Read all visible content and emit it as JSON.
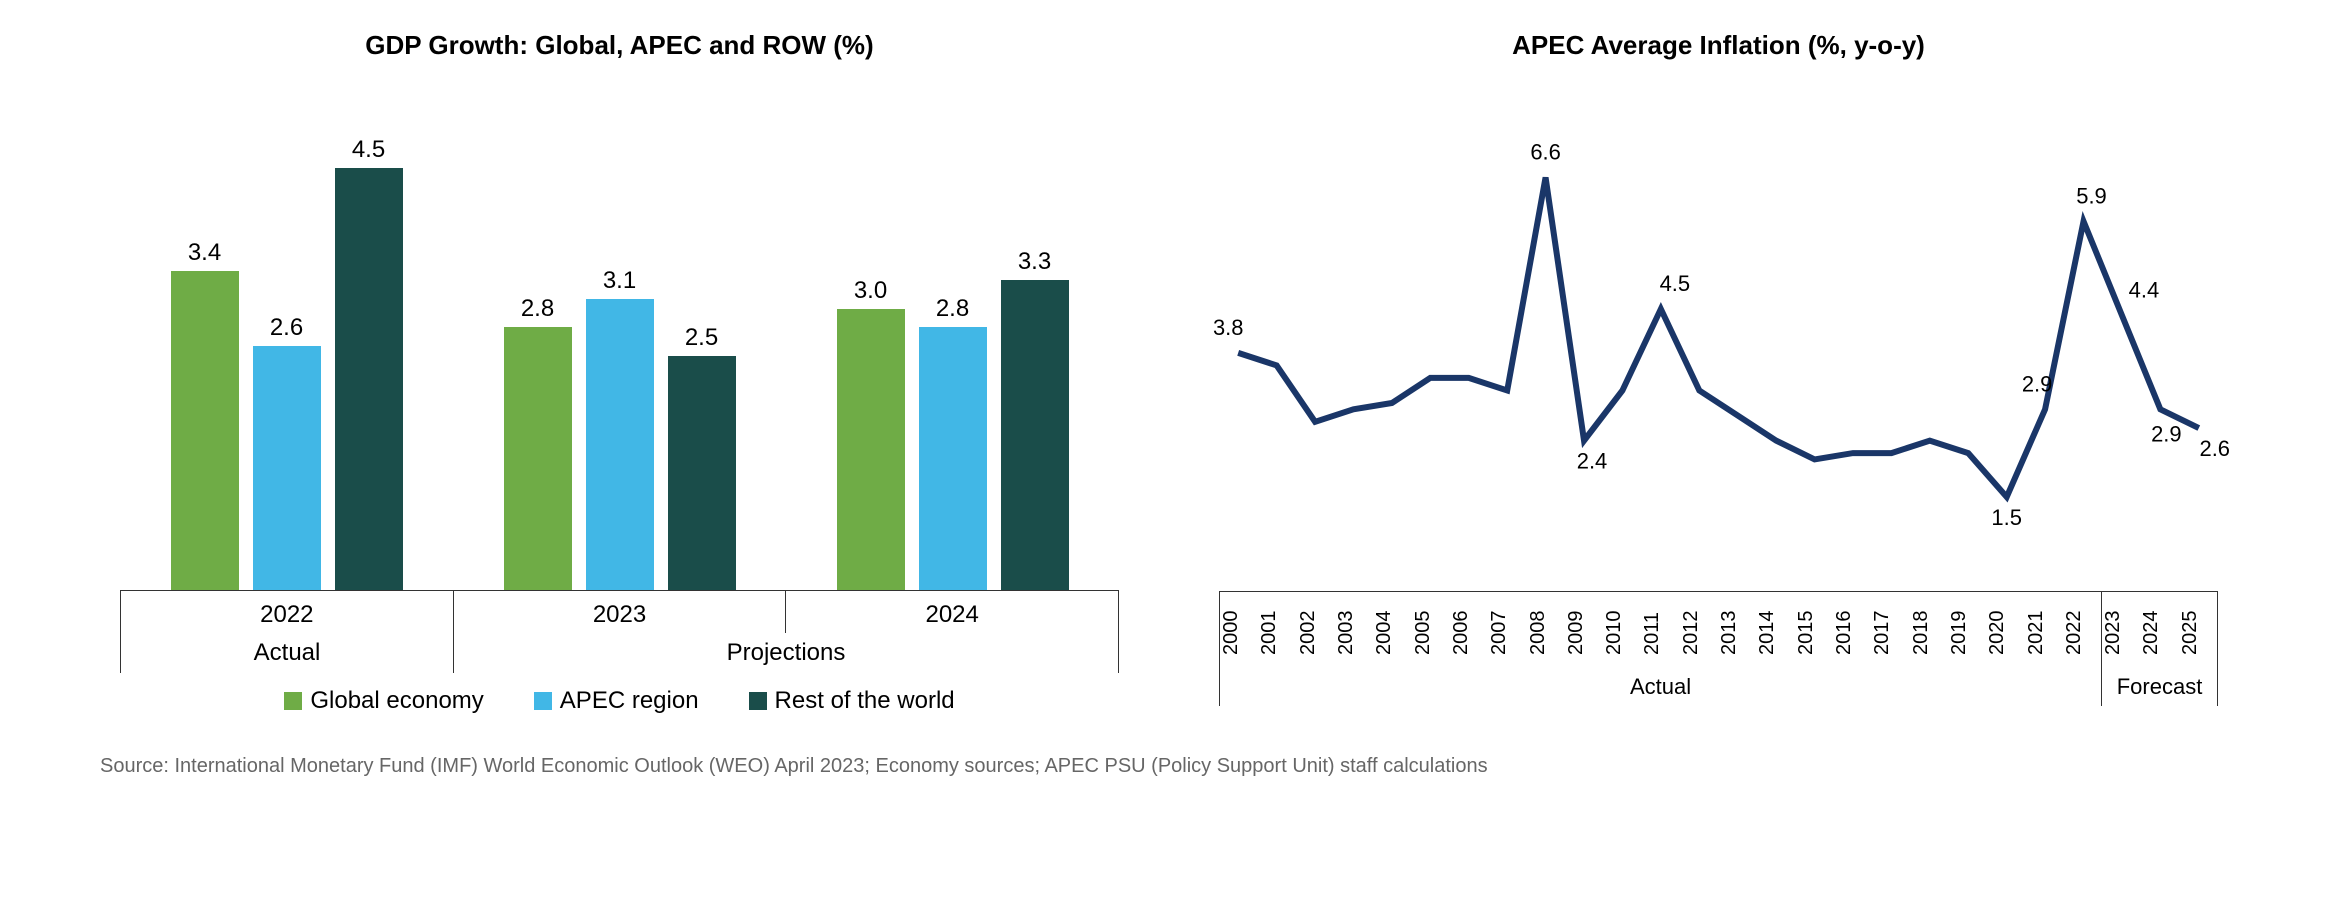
{
  "source_text": "Source: International Monetary Fund (IMF) World Economic Outlook (WEO) April 2023; Economy sources; APEC PSU (Policy Support Unit) staff calculations",
  "bar_chart": {
    "title": "GDP Growth: Global, APEC and ROW (%)",
    "ymax": 5.0,
    "series": [
      {
        "name": "Global economy",
        "color": "#6fac46"
      },
      {
        "name": "APEC region",
        "color": "#41b7e6"
      },
      {
        "name": "Rest of the world",
        "color": "#1a4d4a"
      }
    ],
    "groups": [
      {
        "label": "Actual",
        "cats": [
          "2022"
        ]
      },
      {
        "label": "Projections",
        "cats": [
          "2023",
          "2024"
        ]
      }
    ],
    "data": {
      "2022": [
        3.4,
        2.6,
        4.5
      ],
      "2023": [
        2.8,
        3.1,
        2.5
      ],
      "2024": [
        3.0,
        2.8,
        3.3
      ]
    }
  },
  "line_chart": {
    "title": "APEC Average Inflation (%, y-o-y)",
    "color": "#1a3668",
    "ymin": 0,
    "ymax": 7.5,
    "groups": [
      {
        "label": "Actual",
        "years": [
          "2000",
          "2001",
          "2002",
          "2003",
          "2004",
          "2005",
          "2006",
          "2007",
          "2008",
          "2009",
          "2010",
          "2011",
          "2012",
          "2013",
          "2014",
          "2015",
          "2016",
          "2017",
          "2018",
          "2019",
          "2020",
          "2021",
          "2022"
        ]
      },
      {
        "label": "Forecast",
        "years": [
          "2023",
          "2024",
          "2025"
        ]
      }
    ],
    "values": {
      "2000": 3.8,
      "2001": 3.6,
      "2002": 2.7,
      "2003": 2.9,
      "2004": 3.0,
      "2005": 3.4,
      "2006": 3.4,
      "2007": 3.2,
      "2008": 6.6,
      "2009": 2.4,
      "2010": 3.2,
      "2011": 4.5,
      "2012": 3.2,
      "2013": 2.8,
      "2014": 2.4,
      "2015": 2.1,
      "2016": 2.2,
      "2017": 2.2,
      "2018": 2.4,
      "2019": 2.2,
      "2020": 1.5,
      "2021": 2.9,
      "2022": 5.9,
      "2023": 4.4,
      "2024": 2.9,
      "2025": 2.6
    },
    "show_labels": {
      "2000": "3.8",
      "2008": "6.6",
      "2009": "2.4",
      "2011": "4.5",
      "2020": "1.5",
      "2021": "2.9",
      "2022": "5.9",
      "2023": "4.4",
      "2024": "2.9",
      "2025": "2.6"
    },
    "label_offset": {
      "2000": [
        -10,
        -18
      ],
      "2008": [
        0,
        -18
      ],
      "2009": [
        8,
        28
      ],
      "2011": [
        14,
        -18
      ],
      "2020": [
        0,
        28
      ],
      "2021": [
        -8,
        -18
      ],
      "2022": [
        8,
        -18
      ],
      "2023": [
        22,
        -18
      ],
      "2024": [
        6,
        32
      ],
      "2025": [
        16,
        28
      ]
    }
  }
}
